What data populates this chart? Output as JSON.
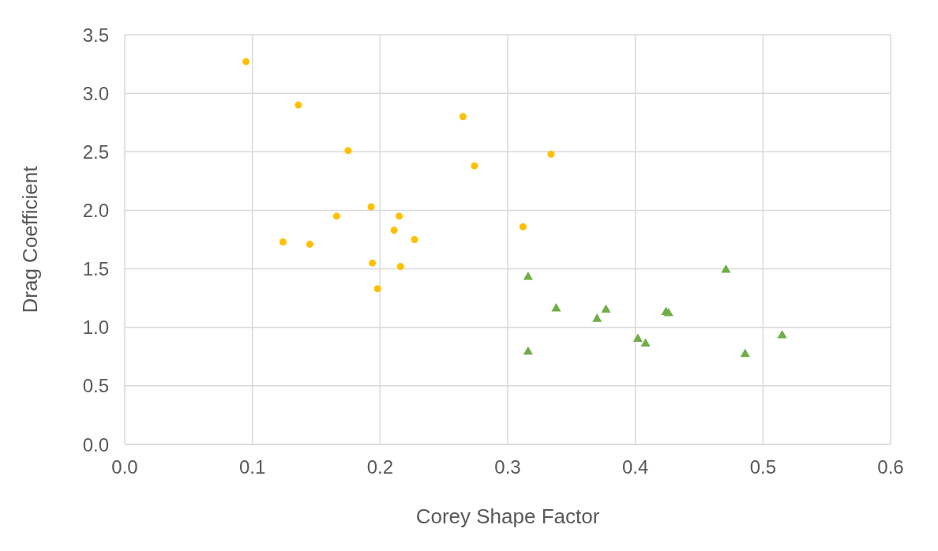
{
  "chart_data": {
    "type": "scatter",
    "xlabel": "Corey Shape Factor",
    "ylabel": "Drag Coefficient",
    "xlim": [
      0,
      0.6
    ],
    "xticks": [
      {
        "value": 0,
        "label": "0.0"
      },
      {
        "value": 0.1,
        "label": "0.1"
      },
      {
        "value": 0.2,
        "label": "0.2"
      },
      {
        "value": 0.3,
        "label": "0.3"
      },
      {
        "value": 0.4,
        "label": "0.4"
      },
      {
        "value": 0.5,
        "label": "0.5"
      },
      {
        "value": 0.6,
        "label": "0.6"
      }
    ],
    "ylim": [
      0,
      3.5
    ],
    "yticks": [
      {
        "value": 0,
        "label": "0.0"
      },
      {
        "value": 0.5,
        "label": "0.5"
      },
      {
        "value": 1,
        "label": "1.0"
      },
      {
        "value": 1.5,
        "label": "1.5"
      },
      {
        "value": 2,
        "label": "2.0"
      },
      {
        "value": 2.5,
        "label": "2.5"
      },
      {
        "value": 3,
        "label": "3.0"
      },
      {
        "value": 3.5,
        "label": "3.5"
      }
    ],
    "grid": true,
    "series": [
      {
        "color": "#ffc000",
        "marker": "circle",
        "x": [
          0.095,
          0.136,
          0.175,
          0.265,
          0.274,
          0.334,
          0.193,
          0.166,
          0.215,
          0.211,
          0.124,
          0.145,
          0.227,
          0.312,
          0.194,
          0.216,
          0.198
        ],
        "values": [
          3.27,
          2.9,
          2.51,
          2.8,
          2.38,
          2.48,
          2.03,
          1.95,
          1.95,
          1.83,
          1.73,
          1.71,
          1.75,
          1.86,
          1.55,
          1.52,
          1.33
        ]
      },
      {
        "color": "#70ad47",
        "marker": "triangle",
        "x": [
          0.316,
          0.338,
          0.377,
          0.37,
          0.424,
          0.426,
          0.471,
          0.402,
          0.408,
          0.316,
          0.486,
          0.515
        ],
        "values": [
          1.43,
          1.16,
          1.15,
          1.07,
          1.13,
          1.12,
          1.49,
          0.9,
          0.86,
          0.79,
          0.77,
          0.93
        ]
      }
    ]
  }
}
